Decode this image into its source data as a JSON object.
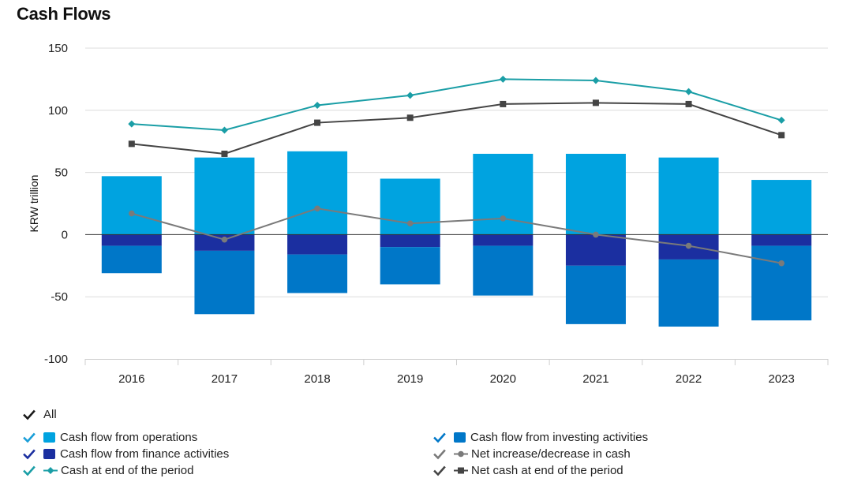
{
  "title": "Cash Flows",
  "chart_data": {
    "type": "bar",
    "title": "Cash Flows",
    "ylabel": "KRW trillion",
    "xlabel": "",
    "ylim": [
      -100,
      150
    ],
    "yticks": [
      150,
      100,
      50,
      0,
      -50,
      -100
    ],
    "ytick_labels": [
      "150",
      "100",
      "50",
      "0",
      "-50",
      "-100"
    ],
    "categories": [
      "2016",
      "2017",
      "2018",
      "2019",
      "2020",
      "2021",
      "2022",
      "2023"
    ],
    "grid": true,
    "stacked": true,
    "bar_series": [
      {
        "name": "Cash flow from operations",
        "color": "#00a3e0",
        "values": [
          47,
          62,
          67,
          45,
          65,
          65,
          62,
          44
        ]
      },
      {
        "name": "Cash flow from finance activities",
        "color": "#1b2fa0",
        "values": [
          -9,
          -13,
          -16,
          -10,
          -9,
          -25,
          -20,
          -9
        ]
      },
      {
        "name": "Cash flow from investing activities",
        "color": "#0077c8",
        "values": [
          -22,
          -51,
          -31,
          -30,
          -40,
          -47,
          -54,
          -60
        ]
      }
    ],
    "line_series": [
      {
        "name": "Net increase/decrease in cash",
        "color": "#7a7a7a",
        "marker": "circle",
        "values": [
          17,
          -4,
          21,
          9,
          13,
          0,
          -9,
          -23
        ]
      },
      {
        "name": "Cash at end of the period",
        "color": "#1a9ea6",
        "marker": "diamond",
        "values": [
          89,
          84,
          104,
          112,
          125,
          124,
          115,
          92
        ]
      },
      {
        "name": "Net cash at end of the period",
        "color": "#444444",
        "marker": "square",
        "values": [
          73,
          65,
          90,
          94,
          105,
          106,
          105,
          80
        ]
      }
    ]
  },
  "legend": {
    "all_label": "All",
    "check_color": "#1a1a1a",
    "items": [
      {
        "label": "Cash flow from operations",
        "color": "#00a3e0",
        "kind": "box",
        "check_color": "#1a9ed8"
      },
      {
        "label": "Cash flow from investing activities",
        "color": "#0077c8",
        "kind": "box",
        "check_color": "#0077c8"
      },
      {
        "label": "Cash flow from finance activities",
        "color": "#1b2fa0",
        "kind": "box",
        "check_color": "#1b2fa0"
      },
      {
        "label": "Net increase/decrease in cash",
        "color": "#7a7a7a",
        "kind": "circle",
        "check_color": "#7a7a7a"
      },
      {
        "label": "Cash at end of the period",
        "color": "#1a9ea6",
        "kind": "diamond",
        "check_color": "#1a9ea6"
      },
      {
        "label": "Net cash at end of the period",
        "color": "#444444",
        "kind": "square",
        "check_color": "#444444"
      }
    ]
  }
}
